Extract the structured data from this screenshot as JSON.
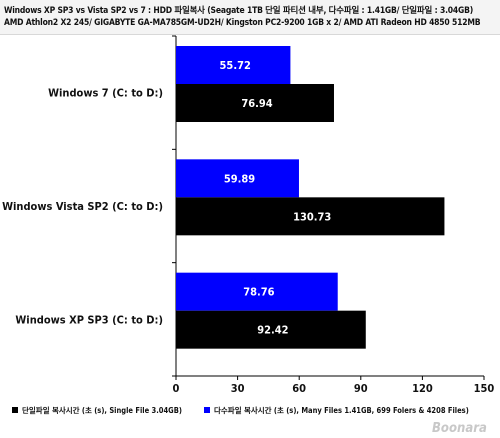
{
  "header": {
    "line1": "Windows XP SP3 vs Vista SP2 vs 7 : HDD 파일복사 (Seagate 1TB 단일 파티션 내부, 다수파일 : 1.41GB/ 단일파일 : 3.04GB)",
    "line2": "AMD Athlon2 X2 245/ GIGABYTE GA-MA785GM-UD2H/ Kingston PC2-9200 1GB x 2/ AMD ATI Radeon HD 4850 512MB"
  },
  "watermark": "Boonara",
  "chart_data": {
    "type": "bar",
    "orientation": "horizontal",
    "categories": [
      "Windows 7 (C: to D:)",
      "Windows Vista SP2 (C: to D:)",
      "Windows XP SP3 (C: to D:)"
    ],
    "series": [
      {
        "name": "다수파일 복사시간 (초 (s), Many Files 1.41GB, 699 Folers & 4208 Files)",
        "color": "#0000ff",
        "values": [
          55.72,
          59.89,
          78.76
        ]
      },
      {
        "name": "단일파일 복사시간 (초 (s), Single File 3.04GB)",
        "color": "#000000",
        "values": [
          76.94,
          130.73,
          92.42
        ]
      }
    ],
    "xlim": [
      0,
      150
    ],
    "xticks": [
      "0",
      "30",
      "60",
      "90",
      "120",
      "150"
    ],
    "legend": "bottom",
    "legend_order": [
      1,
      0
    ]
  }
}
